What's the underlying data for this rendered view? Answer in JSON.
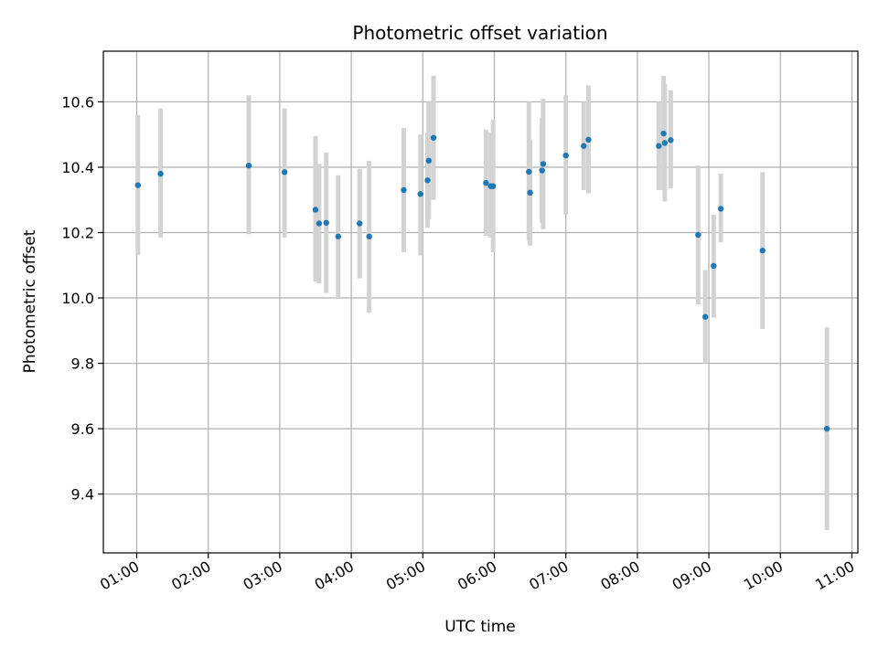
{
  "chart_data": {
    "type": "scatter",
    "title": "Photometric offset variation",
    "xlabel": "UTC time",
    "ylabel": "Photometric offset",
    "x_ticks": [
      "01:00",
      "02:00",
      "03:00",
      "04:00",
      "05:00",
      "06:00",
      "07:00",
      "08:00",
      "09:00",
      "10:00",
      "11:00"
    ],
    "y_ticks": [
      "9.4",
      "9.6",
      "9.8",
      "10.0",
      "10.2",
      "10.4",
      "10.6"
    ],
    "ylim": [
      9.22,
      10.755
    ],
    "xlim": [
      "00:32",
      "11:05"
    ],
    "grid": true,
    "colors": {
      "point": "#1f77b4",
      "errorbar": "#d3d3d3",
      "grid": "#b0b0b0"
    },
    "series": [
      {
        "points": [
          {
            "x": "01:01",
            "y": 10.345,
            "lo": 10.13,
            "hi": 10.56
          },
          {
            "x": "01:20",
            "y": 10.38,
            "lo": 10.185,
            "hi": 10.58
          },
          {
            "x": "02:34",
            "y": 10.405,
            "lo": 10.195,
            "hi": 10.62
          },
          {
            "x": "03:04",
            "y": 10.385,
            "lo": 10.185,
            "hi": 10.58
          },
          {
            "x": "03:30",
            "y": 10.27,
            "lo": 10.05,
            "hi": 10.495
          },
          {
            "x": "03:33",
            "y": 10.228,
            "lo": 10.045,
            "hi": 10.41
          },
          {
            "x": "03:39",
            "y": 10.23,
            "lo": 10.015,
            "hi": 10.445
          },
          {
            "x": "03:49",
            "y": 10.188,
            "lo": 10.0,
            "hi": 10.375
          },
          {
            "x": "04:07",
            "y": 10.228,
            "lo": 10.06,
            "hi": 10.395
          },
          {
            "x": "04:15",
            "y": 10.188,
            "lo": 9.955,
            "hi": 10.42
          },
          {
            "x": "04:44",
            "y": 10.33,
            "lo": 10.14,
            "hi": 10.52
          },
          {
            "x": "04:58",
            "y": 10.318,
            "lo": 10.13,
            "hi": 10.5
          },
          {
            "x": "05:04",
            "y": 10.36,
            "lo": 10.215,
            "hi": 10.505
          },
          {
            "x": "05:05",
            "y": 10.42,
            "lo": 10.24,
            "hi": 10.6
          },
          {
            "x": "05:09",
            "y": 10.49,
            "lo": 10.3,
            "hi": 10.68
          },
          {
            "x": "05:53",
            "y": 10.352,
            "lo": 10.19,
            "hi": 10.515
          },
          {
            "x": "05:57",
            "y": 10.342,
            "lo": 10.185,
            "hi": 10.505
          },
          {
            "x": "05:59",
            "y": 10.342,
            "lo": 10.14,
            "hi": 10.545
          },
          {
            "x": "06:29",
            "y": 10.386,
            "lo": 10.175,
            "hi": 10.6
          },
          {
            "x": "06:30",
            "y": 10.322,
            "lo": 10.16,
            "hi": 10.485
          },
          {
            "x": "06:40",
            "y": 10.39,
            "lo": 10.23,
            "hi": 10.55
          },
          {
            "x": "06:41",
            "y": 10.41,
            "lo": 10.21,
            "hi": 10.61
          },
          {
            "x": "07:00",
            "y": 10.436,
            "lo": 10.255,
            "hi": 10.62
          },
          {
            "x": "07:15",
            "y": 10.465,
            "lo": 10.33,
            "hi": 10.6
          },
          {
            "x": "07:19",
            "y": 10.484,
            "lo": 10.32,
            "hi": 10.65
          },
          {
            "x": "08:18",
            "y": 10.465,
            "lo": 10.33,
            "hi": 10.6
          },
          {
            "x": "08:22",
            "y": 10.503,
            "lo": 10.33,
            "hi": 10.68
          },
          {
            "x": "08:23",
            "y": 10.474,
            "lo": 10.295,
            "hi": 10.655
          },
          {
            "x": "08:28",
            "y": 10.483,
            "lo": 10.335,
            "hi": 10.635
          },
          {
            "x": "08:51",
            "y": 10.193,
            "lo": 9.98,
            "hi": 10.405
          },
          {
            "x": "08:57",
            "y": 9.942,
            "lo": 9.8,
            "hi": 10.085
          },
          {
            "x": "09:04",
            "y": 10.098,
            "lo": 9.94,
            "hi": 10.255
          },
          {
            "x": "09:10",
            "y": 10.273,
            "lo": 10.17,
            "hi": 10.38
          },
          {
            "x": "09:45",
            "y": 10.145,
            "lo": 9.905,
            "hi": 10.385
          },
          {
            "x": "10:39",
            "y": 9.6,
            "lo": 9.29,
            "hi": 9.91
          }
        ]
      }
    ]
  }
}
